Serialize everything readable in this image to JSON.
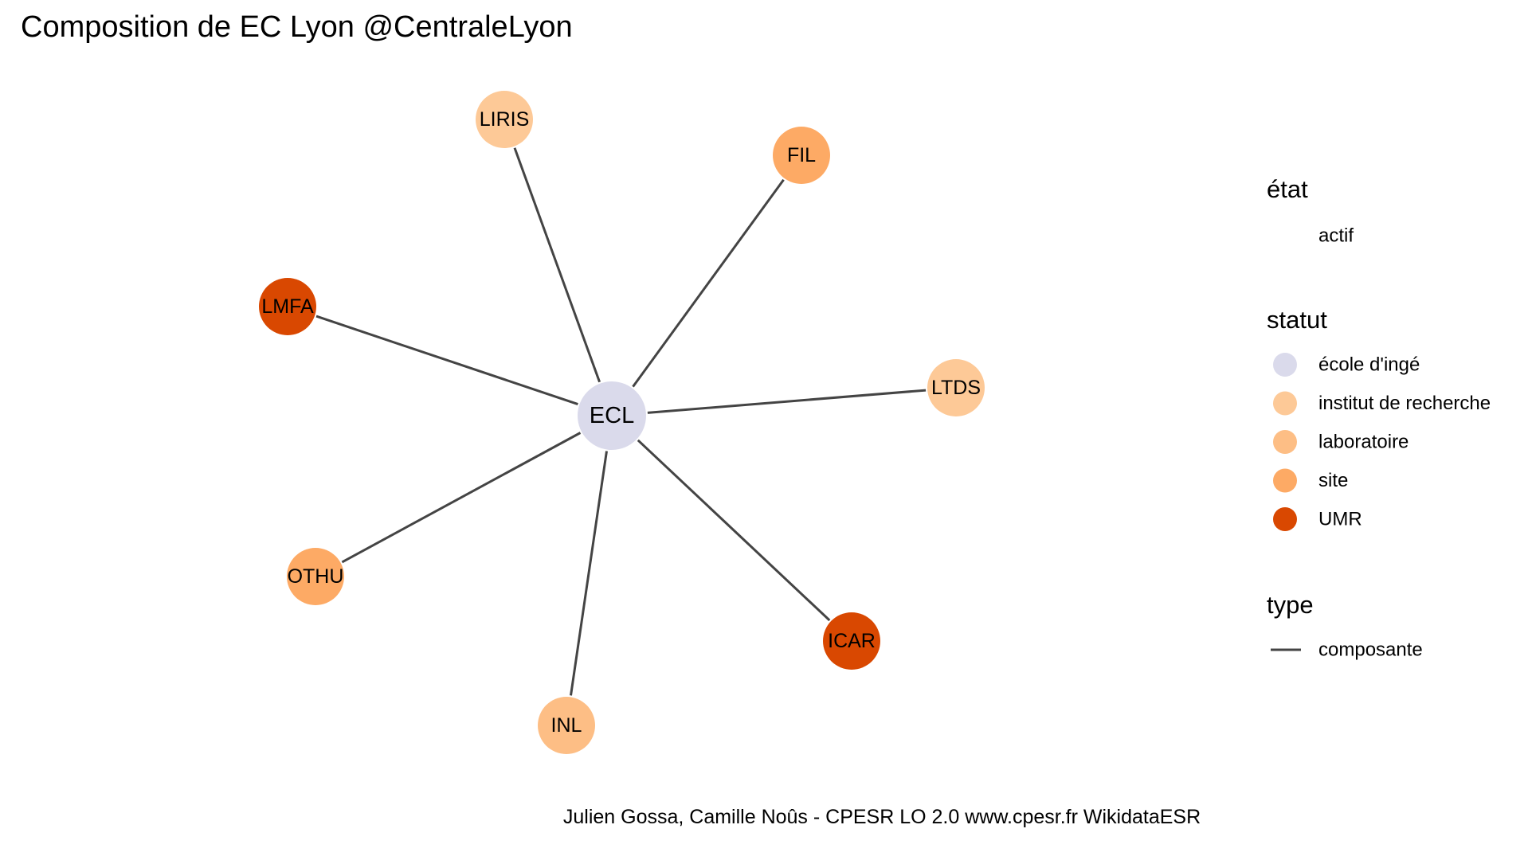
{
  "title": "Composition de EC Lyon @CentraleLyon",
  "caption": "Julien Gossa, Camille Noûs - CPESR LO 2.0 www.cpesr.fr WikidataESR",
  "colors": {
    "edge": "#444444",
    "école d'ingé": "#dadaeb",
    "institut de recherche": "#fdc997",
    "laboratoire": "#fdbe85",
    "site": "#fdaa65",
    "UMR": "#d94801"
  },
  "graph": {
    "center": {
      "label": "ECL",
      "statut": "école d'ingé"
    },
    "nodes": [
      {
        "label": "LIRIS",
        "statut": "institut de recherche"
      },
      {
        "label": "FIL",
        "statut": "site"
      },
      {
        "label": "LMFA",
        "statut": "UMR"
      },
      {
        "label": "LTDS",
        "statut": "institut de recherche"
      },
      {
        "label": "OTHU",
        "statut": "site"
      },
      {
        "label": "ICAR",
        "statut": "UMR"
      },
      {
        "label": "INL",
        "statut": "laboratoire"
      }
    ],
    "edge_type": "composante"
  },
  "legend": {
    "etat": {
      "title": "état",
      "items": [
        "actif"
      ]
    },
    "statut": {
      "title": "statut",
      "items": [
        "école d'ingé",
        "institut de recherche",
        "laboratoire",
        "site",
        "UMR"
      ]
    },
    "type": {
      "title": "type",
      "items": [
        "composante"
      ]
    }
  }
}
